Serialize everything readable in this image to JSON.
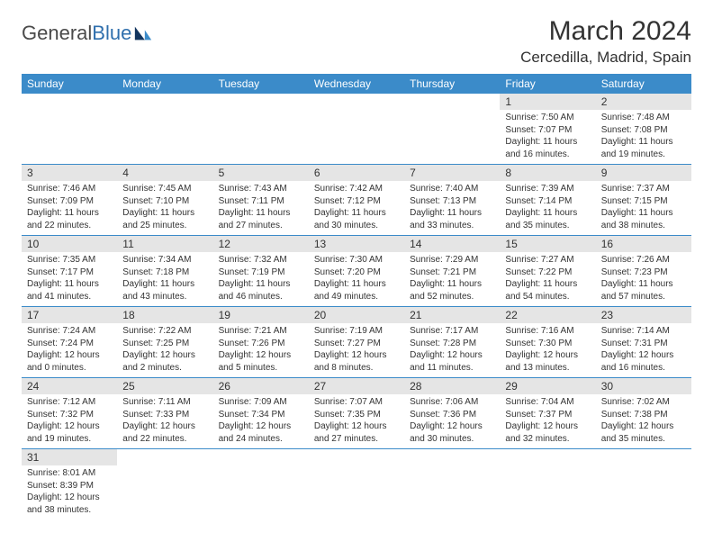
{
  "logo": {
    "text1": "General",
    "text2": "Blue"
  },
  "title": "March 2024",
  "location": "Cercedilla, Madrid, Spain",
  "colors": {
    "header_bg": "#3b8bc9",
    "header_fg": "#ffffff",
    "daynum_bg": "#e5e5e5",
    "rule": "#3b8bc9",
    "text": "#333333"
  },
  "weekdays": [
    "Sunday",
    "Monday",
    "Tuesday",
    "Wednesday",
    "Thursday",
    "Friday",
    "Saturday"
  ],
  "weeks": [
    [
      null,
      null,
      null,
      null,
      null,
      {
        "n": "1",
        "l1": "Sunrise: 7:50 AM",
        "l2": "Sunset: 7:07 PM",
        "l3": "Daylight: 11 hours",
        "l4": "and 16 minutes."
      },
      {
        "n": "2",
        "l1": "Sunrise: 7:48 AM",
        "l2": "Sunset: 7:08 PM",
        "l3": "Daylight: 11 hours",
        "l4": "and 19 minutes."
      }
    ],
    [
      {
        "n": "3",
        "l1": "Sunrise: 7:46 AM",
        "l2": "Sunset: 7:09 PM",
        "l3": "Daylight: 11 hours",
        "l4": "and 22 minutes."
      },
      {
        "n": "4",
        "l1": "Sunrise: 7:45 AM",
        "l2": "Sunset: 7:10 PM",
        "l3": "Daylight: 11 hours",
        "l4": "and 25 minutes."
      },
      {
        "n": "5",
        "l1": "Sunrise: 7:43 AM",
        "l2": "Sunset: 7:11 PM",
        "l3": "Daylight: 11 hours",
        "l4": "and 27 minutes."
      },
      {
        "n": "6",
        "l1": "Sunrise: 7:42 AM",
        "l2": "Sunset: 7:12 PM",
        "l3": "Daylight: 11 hours",
        "l4": "and 30 minutes."
      },
      {
        "n": "7",
        "l1": "Sunrise: 7:40 AM",
        "l2": "Sunset: 7:13 PM",
        "l3": "Daylight: 11 hours",
        "l4": "and 33 minutes."
      },
      {
        "n": "8",
        "l1": "Sunrise: 7:39 AM",
        "l2": "Sunset: 7:14 PM",
        "l3": "Daylight: 11 hours",
        "l4": "and 35 minutes."
      },
      {
        "n": "9",
        "l1": "Sunrise: 7:37 AM",
        "l2": "Sunset: 7:15 PM",
        "l3": "Daylight: 11 hours",
        "l4": "and 38 minutes."
      }
    ],
    [
      {
        "n": "10",
        "l1": "Sunrise: 7:35 AM",
        "l2": "Sunset: 7:17 PM",
        "l3": "Daylight: 11 hours",
        "l4": "and 41 minutes."
      },
      {
        "n": "11",
        "l1": "Sunrise: 7:34 AM",
        "l2": "Sunset: 7:18 PM",
        "l3": "Daylight: 11 hours",
        "l4": "and 43 minutes."
      },
      {
        "n": "12",
        "l1": "Sunrise: 7:32 AM",
        "l2": "Sunset: 7:19 PM",
        "l3": "Daylight: 11 hours",
        "l4": "and 46 minutes."
      },
      {
        "n": "13",
        "l1": "Sunrise: 7:30 AM",
        "l2": "Sunset: 7:20 PM",
        "l3": "Daylight: 11 hours",
        "l4": "and 49 minutes."
      },
      {
        "n": "14",
        "l1": "Sunrise: 7:29 AM",
        "l2": "Sunset: 7:21 PM",
        "l3": "Daylight: 11 hours",
        "l4": "and 52 minutes."
      },
      {
        "n": "15",
        "l1": "Sunrise: 7:27 AM",
        "l2": "Sunset: 7:22 PM",
        "l3": "Daylight: 11 hours",
        "l4": "and 54 minutes."
      },
      {
        "n": "16",
        "l1": "Sunrise: 7:26 AM",
        "l2": "Sunset: 7:23 PM",
        "l3": "Daylight: 11 hours",
        "l4": "and 57 minutes."
      }
    ],
    [
      {
        "n": "17",
        "l1": "Sunrise: 7:24 AM",
        "l2": "Sunset: 7:24 PM",
        "l3": "Daylight: 12 hours",
        "l4": "and 0 minutes."
      },
      {
        "n": "18",
        "l1": "Sunrise: 7:22 AM",
        "l2": "Sunset: 7:25 PM",
        "l3": "Daylight: 12 hours",
        "l4": "and 2 minutes."
      },
      {
        "n": "19",
        "l1": "Sunrise: 7:21 AM",
        "l2": "Sunset: 7:26 PM",
        "l3": "Daylight: 12 hours",
        "l4": "and 5 minutes."
      },
      {
        "n": "20",
        "l1": "Sunrise: 7:19 AM",
        "l2": "Sunset: 7:27 PM",
        "l3": "Daylight: 12 hours",
        "l4": "and 8 minutes."
      },
      {
        "n": "21",
        "l1": "Sunrise: 7:17 AM",
        "l2": "Sunset: 7:28 PM",
        "l3": "Daylight: 12 hours",
        "l4": "and 11 minutes."
      },
      {
        "n": "22",
        "l1": "Sunrise: 7:16 AM",
        "l2": "Sunset: 7:30 PM",
        "l3": "Daylight: 12 hours",
        "l4": "and 13 minutes."
      },
      {
        "n": "23",
        "l1": "Sunrise: 7:14 AM",
        "l2": "Sunset: 7:31 PM",
        "l3": "Daylight: 12 hours",
        "l4": "and 16 minutes."
      }
    ],
    [
      {
        "n": "24",
        "l1": "Sunrise: 7:12 AM",
        "l2": "Sunset: 7:32 PM",
        "l3": "Daylight: 12 hours",
        "l4": "and 19 minutes."
      },
      {
        "n": "25",
        "l1": "Sunrise: 7:11 AM",
        "l2": "Sunset: 7:33 PM",
        "l3": "Daylight: 12 hours",
        "l4": "and 22 minutes."
      },
      {
        "n": "26",
        "l1": "Sunrise: 7:09 AM",
        "l2": "Sunset: 7:34 PM",
        "l3": "Daylight: 12 hours",
        "l4": "and 24 minutes."
      },
      {
        "n": "27",
        "l1": "Sunrise: 7:07 AM",
        "l2": "Sunset: 7:35 PM",
        "l3": "Daylight: 12 hours",
        "l4": "and 27 minutes."
      },
      {
        "n": "28",
        "l1": "Sunrise: 7:06 AM",
        "l2": "Sunset: 7:36 PM",
        "l3": "Daylight: 12 hours",
        "l4": "and 30 minutes."
      },
      {
        "n": "29",
        "l1": "Sunrise: 7:04 AM",
        "l2": "Sunset: 7:37 PM",
        "l3": "Daylight: 12 hours",
        "l4": "and 32 minutes."
      },
      {
        "n": "30",
        "l1": "Sunrise: 7:02 AM",
        "l2": "Sunset: 7:38 PM",
        "l3": "Daylight: 12 hours",
        "l4": "and 35 minutes."
      }
    ],
    [
      {
        "n": "31",
        "l1": "Sunrise: 8:01 AM",
        "l2": "Sunset: 8:39 PM",
        "l3": "Daylight: 12 hours",
        "l4": "and 38 minutes."
      },
      null,
      null,
      null,
      null,
      null,
      null
    ]
  ]
}
